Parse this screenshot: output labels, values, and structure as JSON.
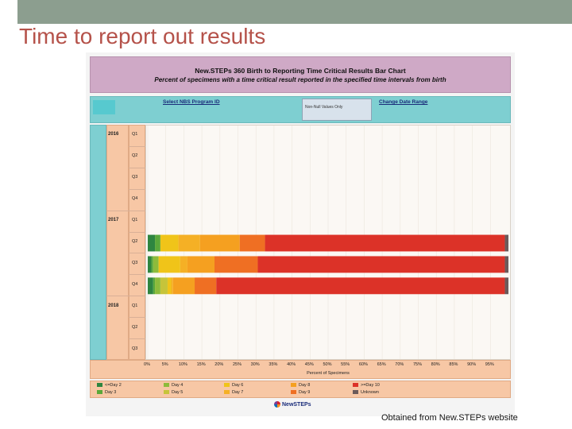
{
  "slide": {
    "title": "Time to report out results",
    "footer": "Obtained from New.STEPs website"
  },
  "dashboard": {
    "header_title": "New.STEPs 360 Birth to Reporting Time Critical Results Bar Chart",
    "header_subtitle": "Percent of specimens with a time critical result reported in the specified time intervals from birth",
    "filter_program": "Select NBS Program ID",
    "filter_date": "Change Date Range",
    "filter_box": "Non-Null Values Only",
    "logo_text": "NewSTEPs"
  },
  "chart_data": {
    "type": "bar",
    "orientation": "horizontal",
    "stacked": true,
    "xlabel": "Percent of Specimens",
    "xlim": [
      0,
      100
    ],
    "xticks": [
      "0%",
      "5%",
      "10%",
      "15%",
      "20%",
      "25%",
      "30%",
      "35%",
      "40%",
      "45%",
      "50%",
      "55%",
      "60%",
      "65%",
      "70%",
      "75%",
      "80%",
      "85%",
      "90%",
      "95%"
    ],
    "rows": [
      {
        "year": "2016",
        "quarter": "Q1"
      },
      {
        "year": "",
        "quarter": "Q2"
      },
      {
        "year": "",
        "quarter": "Q3"
      },
      {
        "year": "",
        "quarter": "Q4"
      },
      {
        "year": "2017",
        "quarter": "Q1"
      },
      {
        "year": "",
        "quarter": "Q2"
      },
      {
        "year": "",
        "quarter": "Q3"
      },
      {
        "year": "",
        "quarter": "Q4"
      },
      {
        "year": "2018",
        "quarter": "Q1"
      },
      {
        "year": "",
        "quarter": "Q2"
      },
      {
        "year": "",
        "quarter": "Q3"
      }
    ],
    "series": [
      {
        "name": "<=Day 2",
        "color": "#2e8540",
        "values": [
          0,
          0,
          0,
          0,
          0,
          2,
          1,
          1.5,
          0,
          0,
          0
        ]
      },
      {
        "name": "Day 3",
        "color": "#5aa83a",
        "values": [
          0,
          0,
          0,
          0,
          0,
          1.5,
          0.5,
          0.5,
          0,
          0,
          0
        ]
      },
      {
        "name": "Day 4",
        "color": "#8dbb3b",
        "values": [
          0,
          0,
          0,
          0,
          0,
          0,
          1.5,
          1.5,
          0,
          0,
          0
        ]
      },
      {
        "name": "Day 5",
        "color": "#c6c43a",
        "values": [
          0,
          0,
          0,
          0,
          0,
          0,
          0,
          2,
          0,
          0,
          0
        ]
      },
      {
        "name": "Day 6",
        "color": "#f0c419",
        "values": [
          0,
          0,
          0,
          0,
          0,
          5,
          6,
          1,
          0,
          0,
          0
        ]
      },
      {
        "name": "Day 7",
        "color": "#f5b025",
        "values": [
          0,
          0,
          0,
          0,
          0,
          6,
          2,
          0.5,
          0,
          0,
          0
        ]
      },
      {
        "name": "Day 8",
        "color": "#f5a020",
        "values": [
          0,
          0,
          0,
          0,
          0,
          11,
          7.5,
          6,
          0,
          0,
          0
        ]
      },
      {
        "name": "Day 9",
        "color": "#ef6f23",
        "values": [
          0,
          0,
          0,
          0,
          0,
          7,
          12,
          6,
          0,
          0,
          0
        ]
      },
      {
        "name": ">=Day 10",
        "color": "#dc3228",
        "values": [
          0,
          0,
          0,
          0,
          0,
          66.5,
          68.5,
          80,
          0,
          0,
          0
        ]
      },
      {
        "name": "Unknown",
        "color": "#6b5a5a",
        "values": [
          0,
          0,
          0,
          0,
          0,
          1,
          1,
          1,
          0,
          0,
          0
        ]
      }
    ],
    "legend_order": [
      "<=Day 2",
      "Day 4",
      "Day 6",
      "Day 8",
      ">=Day 10",
      "Day 3",
      "Day 5",
      "Day 7",
      "Day 9",
      "Unknown"
    ]
  }
}
